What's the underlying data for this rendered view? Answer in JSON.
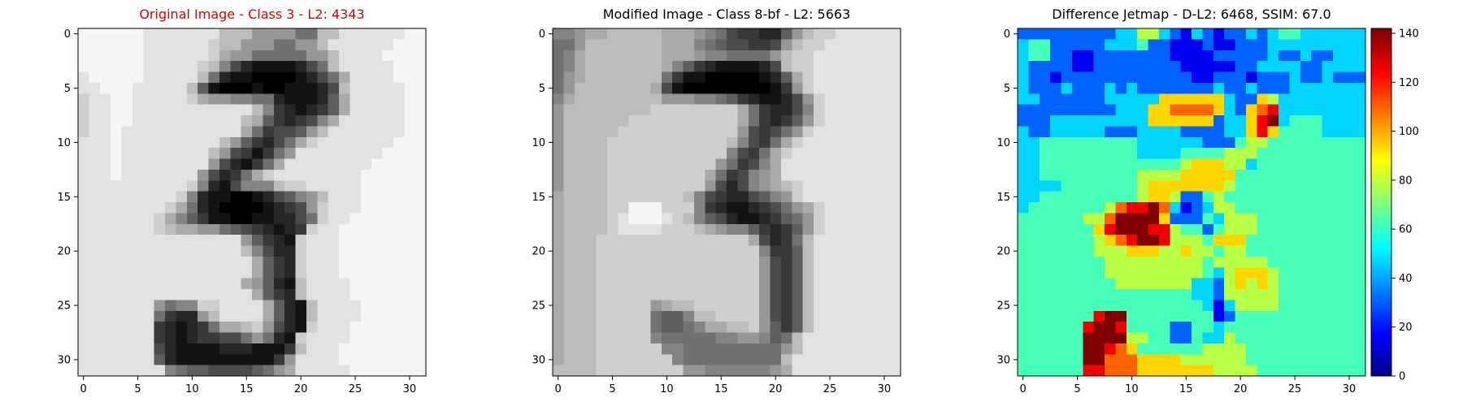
{
  "chart_data": [
    {
      "type": "heatmap",
      "title": "Original Image - Class 3 - L2: 4343",
      "title_color": "#e00000",
      "colormap": "gray",
      "grid": false,
      "x_ticks": [
        "0",
        "5",
        "10",
        "15",
        "20",
        "25",
        "30"
      ],
      "y_ticks": [
        "0",
        "5",
        "10",
        "15",
        "20",
        "25",
        "30"
      ],
      "xlim": [
        0,
        31
      ],
      "ylim": [
        31,
        0
      ],
      "rows": [
        "ddddddcccccccaaa888866aaccccccdd",
        "dddddeccccccbaa8886688accccccdd",
        "dddddeccccccb9886666688accccddd",
        "ddeeddcccccba7421111246acccccdd",
        "cdddddccccca6211000012469ccccdd",
        "ccdddccccca5100010011124acccccd",
        "bccddcccccb98877662111259cccccd",
        "bccddccccccccccca73212359cccccd",
        "bccddcccccccccca95323479ccccccd",
        "bccdccccccccccc9634458acccccccd",
        "cccdccccccccca8532469bcccccccdd",
        "cccdcccccccca8431368ccccccccddd",
        "cccdcccccccc8421369ccccccccdddd",
        "cccdccccccc842369bccccccccddddd",
        "ccccccccccb7214777abbcccccddddd",
        "cccccccccb721100124578acccddddd",
        "ccccccccb9621000012348bcccddddd",
        "cccccccb97531100112246bccddddd",
        "cccccccba998865432123bccddddd",
        "ccccccccccccccc85321bcccdddd",
        "ccccccccccccccca7422bcccddddd",
        "cccccccccccccccc9532bcccdddd",
        "cccccccccccccccc9532bcccddddd",
        "ccccccccccccccc98521accccdddd",
        "cccccccccccccccc9532accccdddd",
        "ccccccc8677bbcccc9521accccdddd",
        "ccccccc63228acccc9521accccdddd",
        "ccccccc32123699ab8421bcccddddd",
        "ccccccc3212334468621bccccddddd",
        "ccccccc4211112221113acccddddd",
        "ccccccc5211111111138ccccddddd",
        "cccccccc765544445689cccccddddd"
      ]
    },
    {
      "type": "heatmap",
      "title": "Modified Image - Class 8-bf - L2: 5663",
      "title_color": "#000000",
      "colormap": "gray",
      "grid": false,
      "x_ticks": [
        "0",
        "5",
        "10",
        "15",
        "20",
        "25",
        "30"
      ],
      "y_ticks": [
        "0",
        "5",
        "10",
        "15",
        "20",
        "25",
        "30"
      ],
      "xlim": [
        0,
        31
      ],
      "ylim": [
        31,
        0
      ],
      "rows": [
        "77899aaaaa9998764332258abbcccccc",
        "668aaaaaaa999765443348abbcccccc",
        "679aaaaaaa99987766668abbccccccc",
        "679aaaaaaa97532111124abbccccccc",
        "689aaaaaaa6311000001259bccccccc",
        "68aaaaaaa94100000000138bccccccc",
        "79aaaaaaaa88877653211248bcccccc",
        "8aaaaaaaabbbbbbbb9632247bcccccc",
        "8aaaaaabbbbbbbbbb9632358bcccccc",
        "8aaaaabbbbbbbbbbb843468bccccccc",
        "8aaaabbbbbbbbbbba74369bcccccccc",
        "8aaaabbbbbbbbbbb74369bccccccccc",
        "8aaaabbbbbbbbbb863479cccccccccc",
        "8aaaabbbbbbbbb9634789cccccccccc",
        "8aaaabbbbbbbbb8424789abcccccccc",
        "9aaaabbbbbbba743224578bcccccccc",
        "9aaaabbdddbbb73211234689bcccccc",
        "9aaaabcdddcba75421123568bcccccc",
        "9aaaabccccbbba9877532358bcccccc",
        "9aaabbbbbbbbbbbbbb94236acccccc",
        "9aaabbbbbbbbbbbbbbb7335acccccc",
        "9aaabbbbbbbbbbbbbbb8435accccccc",
        "9aaabbbbbbbbbbbbbbb8435accccccc",
        "9aaabbbbbbbbbbbbbbb8435accccccc",
        "9aaabbbbbbbbbbbbbbb8435accccccc",
        "9aaabbbbb89aabbbbbb8435accccccc",
        "9aaabbbbb6557aabbbb8435accccccc",
        "9aaabbbbb6556799aab8535accccccc",
        "9aaabbbbb7666667788756acccccccc",
        "9aaabbbbbb776666666668acccccccc",
        "9aaabbbbbbb7666666666acccccccc",
        "aaaabbbbbbbb8877777789ccccccccc"
      ]
    },
    {
      "type": "heatmap",
      "title": "Difference Jetmap - D-L2: 6468, SSIM: 67.0",
      "title_color": "#000000",
      "colormap": "jet",
      "grid": false,
      "x_ticks": [
        "0",
        "5",
        "10",
        "15",
        "20",
        "25",
        "30"
      ],
      "y_ticks": [
        "0",
        "5",
        "10",
        "15",
        "20",
        "25",
        "30"
      ],
      "xlim": [
        0,
        31
      ],
      "ylim": [
        31,
        0
      ],
      "colorbar": {
        "vmin": 0,
        "vmax": 142,
        "ticks": [
          "0",
          "20",
          "40",
          "60",
          "80",
          "100",
          "120",
          "140"
        ]
      },
      "rows": [
        "2222222223355321321223234433333",
        "3442222233342211121122233333333",
        "3442211222222211112222232232233",
        "3222211222222221111122333322333",
        "3221222222222222112221222322322",
        "3222322232322222223223222333333",
        "3322222233333666666322653333333",
        "2222222223336677776326783333333",
        "2223333333336666662336893444333",
        "3223333322233332222336864444333",
        "3344444444433333322245544444444",
        "3344444444433334444555444444444",
        "3344444444444445666553444444444",
        "3344444444455556666644444444444",
        "3333444444456666666544444444444",
        "3344444444456652245444444444444",
        "3444444457889731235544444444444",
        "4444445579999622243555444444444",
        "4444444689998854424555444444444",
        "4444444567899855546664444444444",
        "4444444555666556554554444444444",
        "4444444455555555545555544444444",
        "4444444455555555543566654444444",
        "4444444445555555332565654444444",
        "4444444444444444332555554444444",
        "4444444444444444431355554444444",
        "4444444899444444441244444444444",
        "4444448998444422443444444444444",
        "4444449999554422433544444444444",
        "4444449987644444455554444444444",
        "4444449977766665555554444444444",
        "4444448877766666665555444444444"
      ]
    }
  ]
}
